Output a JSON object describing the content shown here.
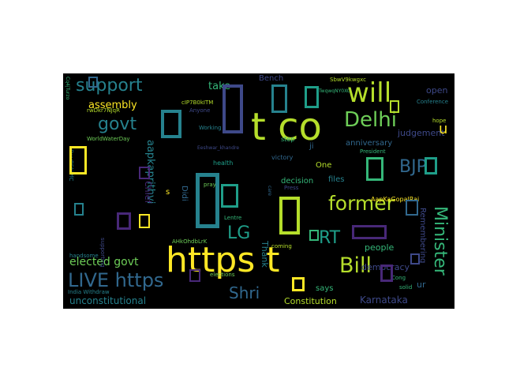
{
  "colors": {
    "background": "#000000",
    "page": "#ffffff",
    "palette": [
      "#fde725",
      "#b5de2b",
      "#6ece58",
      "#35b779",
      "#1f9e89",
      "#26828e",
      "#31688e",
      "#3e4989",
      "#482878",
      "#440154"
    ]
  },
  "words": [
    "https t",
    "t co",
    "will",
    "Delhi",
    "former",
    "Bill",
    "LIVE https",
    "Minister",
    "support",
    "govt",
    "BJP",
    "LG",
    "RT",
    "Shri",
    "elected govt",
    "unconstitutional",
    "Karnataka",
    "Constitution",
    "aapkaprithvi",
    "assembly",
    "take",
    "Bench",
    "democracy",
    "judgement",
    "anniversary",
    "open",
    "One",
    "decision",
    "files",
    "people",
    "says",
    "Remembering",
    "Thank",
    "Chief",
    "Didi",
    "AapKaGopalRai",
    "President",
    "Conference",
    "hope",
    "victory",
    "step",
    "ji",
    "pray",
    "health",
    "Working",
    "Anyone",
    "handsome",
    "supporting",
    "India Withdraw",
    "elections",
    "coming",
    "Lentre",
    "Press",
    "care",
    "solid",
    "Cong",
    "ur",
    "u",
    "s",
    "WorldWaterDay",
    "DuvBFAiPfC",
    "cIP7B0kITM",
    "TwqwqNY0XC",
    "SbwV9kwgxc",
    "rwDkr7NJqR",
    "Cq4jTurzo",
    "AHkOhdbLrK",
    "Eeshwar_khandre"
  ],
  "placeholder_glyph": "□"
}
